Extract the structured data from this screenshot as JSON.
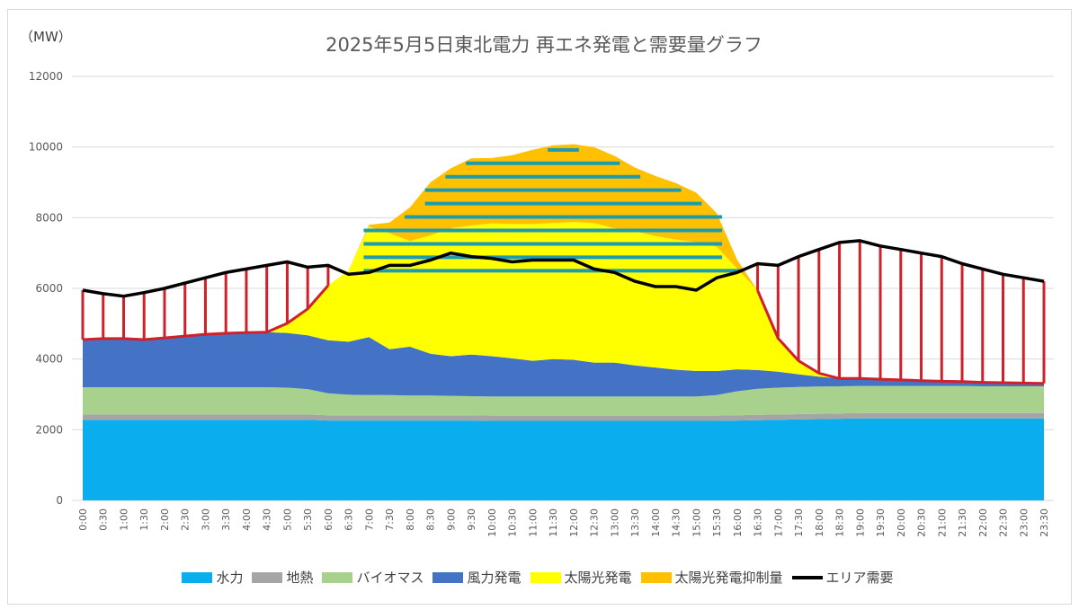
{
  "chart_data": {
    "type": "area",
    "title": "2025年5月5日東北電力 再エネ発電と需要量グラフ",
    "unit_label": "（MW）",
    "xlabel": "",
    "ylabel": "MW",
    "ylim": [
      0,
      12000
    ],
    "yticks": [
      0,
      2000,
      4000,
      6000,
      8000,
      10000,
      12000
    ],
    "grid": true,
    "legend_position": "bottom",
    "x": [
      "0:00",
      "0:30",
      "1:00",
      "1:30",
      "2:00",
      "2:30",
      "3:00",
      "3:30",
      "4:00",
      "4:30",
      "5:00",
      "5:30",
      "6:00",
      "6:30",
      "7:00",
      "7:30",
      "8:00",
      "8:30",
      "9:00",
      "9:30",
      "10:00",
      "10:30",
      "11:00",
      "11:30",
      "12:00",
      "12:30",
      "13:00",
      "13:30",
      "14:00",
      "14:30",
      "15:00",
      "15:30",
      "16:00",
      "16:30",
      "17:00",
      "17:30",
      "18:00",
      "18:30",
      "19:00",
      "19:30",
      "20:00",
      "20:30",
      "21:00",
      "21:30",
      "22:00",
      "22:30",
      "23:00",
      "23:30"
    ],
    "series": [
      {
        "name": "水力",
        "kind": "stacked-area",
        "color": "#0aaeee",
        "values": [
          2280,
          2280,
          2280,
          2280,
          2280,
          2280,
          2280,
          2280,
          2280,
          2280,
          2280,
          2280,
          2260,
          2260,
          2260,
          2260,
          2260,
          2260,
          2260,
          2260,
          2250,
          2250,
          2250,
          2250,
          2250,
          2250,
          2250,
          2250,
          2250,
          2250,
          2250,
          2250,
          2260,
          2270,
          2280,
          2290,
          2300,
          2310,
          2320,
          2320,
          2320,
          2320,
          2320,
          2320,
          2320,
          2320,
          2320,
          2320
        ]
      },
      {
        "name": "地熱",
        "kind": "stacked-area",
        "color": "#a5a5a5",
        "values": [
          150,
          150,
          150,
          150,
          150,
          150,
          150,
          150,
          150,
          150,
          150,
          150,
          150,
          150,
          150,
          150,
          150,
          150,
          150,
          150,
          150,
          150,
          150,
          150,
          150,
          150,
          150,
          150,
          150,
          150,
          150,
          150,
          150,
          150,
          150,
          150,
          150,
          150,
          150,
          150,
          150,
          150,
          150,
          150,
          150,
          150,
          150,
          150
        ]
      },
      {
        "name": "バイオマス",
        "kind": "stacked-area",
        "color": "#a9d18e",
        "values": [
          770,
          770,
          770,
          770,
          770,
          770,
          770,
          770,
          770,
          770,
          760,
          720,
          620,
          580,
          570,
          570,
          560,
          560,
          550,
          540,
          540,
          540,
          540,
          540,
          540,
          540,
          540,
          540,
          540,
          540,
          540,
          580,
          680,
          740,
          760,
          770,
          770,
          770,
          770,
          770,
          770,
          770,
          770,
          770,
          760,
          760,
          760,
          760
        ]
      },
      {
        "name": "風力発電",
        "kind": "stacked-area",
        "color": "#4472c4",
        "values": [
          1350,
          1380,
          1380,
          1350,
          1400,
          1450,
          1500,
          1530,
          1550,
          1560,
          1550,
          1520,
          1500,
          1500,
          1640,
          1300,
          1380,
          1180,
          1120,
          1180,
          1140,
          1080,
          1010,
          1060,
          1040,
          960,
          960,
          880,
          820,
          760,
          720,
          680,
          620,
          530,
          450,
          360,
          280,
          220,
          210,
          190,
          170,
          150,
          130,
          120,
          110,
          100,
          90,
          80
        ]
      },
      {
        "name": "太陽光発電",
        "kind": "stacked-area",
        "color": "#ffff00",
        "values": [
          0,
          0,
          0,
          0,
          0,
          0,
          0,
          0,
          0,
          0,
          270,
          750,
          1550,
          2020,
          3130,
          3280,
          2990,
          3350,
          3620,
          3650,
          3760,
          3800,
          3870,
          3850,
          3900,
          3950,
          3800,
          3800,
          3720,
          3680,
          3650,
          3520,
          2850,
          2250,
          950,
          380,
          100,
          0,
          0,
          0,
          0,
          0,
          0,
          0,
          0,
          0,
          0,
          0
        ]
      },
      {
        "name": "太陽光発電抑制量",
        "kind": "stacked-area",
        "color": "#ffc000",
        "values": [
          0,
          0,
          0,
          0,
          0,
          0,
          0,
          0,
          0,
          0,
          0,
          0,
          0,
          0,
          50,
          300,
          950,
          1500,
          1700,
          1900,
          1850,
          1950,
          2100,
          2200,
          2200,
          2150,
          2050,
          1800,
          1700,
          1600,
          1400,
          950,
          250,
          0,
          0,
          0,
          0,
          0,
          0,
          0,
          0,
          0,
          0,
          0,
          0,
          0,
          0,
          0
        ]
      },
      {
        "name": "エリア需要",
        "kind": "line",
        "color": "#000000",
        "values": [
          5950,
          5850,
          5780,
          5880,
          6000,
          6150,
          6300,
          6450,
          6550,
          6650,
          6750,
          6600,
          6650,
          6400,
          6450,
          6650,
          6650,
          6800,
          7000,
          6900,
          6850,
          6750,
          6800,
          6800,
          6800,
          6550,
          6450,
          6200,
          6050,
          6050,
          5950,
          6300,
          6450,
          6700,
          6650,
          6900,
          7100,
          7300,
          7350,
          7200,
          7100,
          7000,
          6900,
          6700,
          6550,
          6400,
          6300,
          6200
        ]
      }
    ],
    "annotations": {
      "red_gap_outline": {
        "color": "#d0202a",
        "description": "hand-drawn red hatching between supply top and demand where demand exceeds renewables"
      },
      "teal_hatch": {
        "color": "#1f9bb0",
        "description": "hand-drawn teal horizontal hatching over curtailed solar region"
      }
    }
  },
  "legend": [
    {
      "label": "水力",
      "color": "#0aaeee",
      "type": "box"
    },
    {
      "label": "地熱",
      "color": "#a5a5a5",
      "type": "box"
    },
    {
      "label": "バイオマス",
      "color": "#a9d18e",
      "type": "box"
    },
    {
      "label": "風力発電",
      "color": "#4472c4",
      "type": "box"
    },
    {
      "label": "太陽光発電",
      "color": "#ffff00",
      "type": "box"
    },
    {
      "label": "太陽光発電抑制量",
      "color": "#ffc000",
      "type": "box"
    },
    {
      "label": "エリア需要",
      "color": "#000000",
      "type": "line"
    }
  ]
}
